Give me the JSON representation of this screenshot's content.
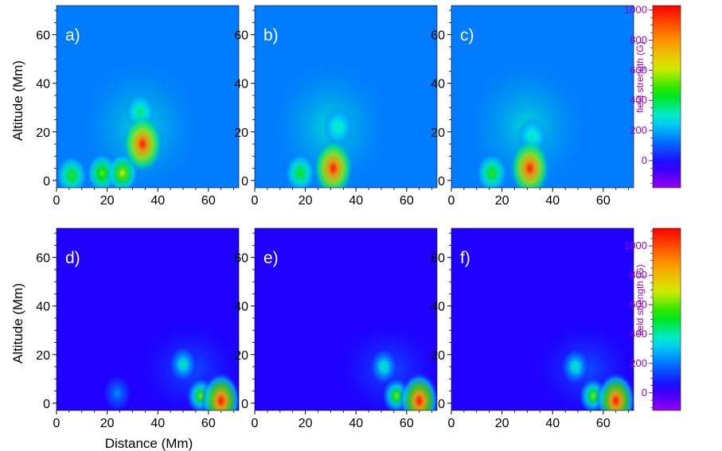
{
  "chart_data": [
    {
      "type": "heatmap",
      "label": "a)",
      "xlim": [
        0,
        72
      ],
      "ylim": [
        -3,
        72
      ],
      "x_ticks": [
        0,
        20,
        40,
        60
      ],
      "y_ticks": [
        0,
        20,
        40,
        60
      ],
      "ylabel": "Altitude (Mm)",
      "xlabel": "",
      "blobs": [
        {
          "x": 34,
          "y": 15,
          "value": 1000
        },
        {
          "x": 26,
          "y": 3,
          "value": 620
        },
        {
          "x": 18,
          "y": 3,
          "value": 540
        },
        {
          "x": 6,
          "y": 2,
          "value": 480
        },
        {
          "x": 33,
          "y": 28,
          "value": 380
        }
      ]
    },
    {
      "type": "heatmap",
      "label": "b)",
      "xlim": [
        0,
        72
      ],
      "ylim": [
        -3,
        72
      ],
      "x_ticks": [
        0,
        20,
        40,
        60
      ],
      "y_ticks": [
        0,
        20,
        40,
        60
      ],
      "ylabel": "",
      "xlabel": "",
      "blobs": [
        {
          "x": 31,
          "y": 5,
          "value": 1000
        },
        {
          "x": 18,
          "y": 3,
          "value": 460
        },
        {
          "x": 33,
          "y": 22,
          "value": 330
        }
      ]
    },
    {
      "type": "heatmap",
      "label": "c)",
      "xlim": [
        0,
        72
      ],
      "ylim": [
        -3,
        72
      ],
      "x_ticks": [
        0,
        20,
        40,
        60
      ],
      "y_ticks": [
        0,
        20,
        40,
        60
      ],
      "ylabel": "",
      "xlabel": "",
      "blobs": [
        {
          "x": 31,
          "y": 5,
          "value": 1000
        },
        {
          "x": 16,
          "y": 3,
          "value": 480
        },
        {
          "x": 32,
          "y": 18,
          "value": 330
        }
      ]
    },
    {
      "type": "heatmap",
      "label": "d)",
      "xlim": [
        0,
        72
      ],
      "ylim": [
        -3,
        72
      ],
      "x_ticks": [
        0,
        20,
        40,
        60
      ],
      "y_ticks": [
        0,
        20,
        40,
        60
      ],
      "ylabel": "Altitude (Mm)",
      "xlabel": "Distance (Mm)",
      "blobs": [
        {
          "x": 65,
          "y": 1,
          "value": 1100
        },
        {
          "x": 57,
          "y": 3,
          "value": 620
        },
        {
          "x": 50,
          "y": 16,
          "value": 420
        },
        {
          "x": 24,
          "y": 4,
          "value": 230
        }
      ]
    },
    {
      "type": "heatmap",
      "label": "e)",
      "xlim": [
        0,
        72
      ],
      "ylim": [
        -3,
        72
      ],
      "x_ticks": [
        0,
        20,
        40,
        60
      ],
      "y_ticks": [
        0,
        20,
        40,
        60
      ],
      "ylabel": "",
      "xlabel": "",
      "blobs": [
        {
          "x": 65,
          "y": 1,
          "value": 1100
        },
        {
          "x": 56,
          "y": 3,
          "value": 620
        },
        {
          "x": 51,
          "y": 15,
          "value": 420
        }
      ]
    },
    {
      "type": "heatmap",
      "label": "f)",
      "xlim": [
        0,
        72
      ],
      "ylim": [
        -3,
        72
      ],
      "x_ticks": [
        0,
        20,
        40,
        60
      ],
      "y_ticks": [
        0,
        20,
        40,
        60
      ],
      "ylabel": "",
      "xlabel": "",
      "blobs": [
        {
          "x": 65,
          "y": 1,
          "value": 1100
        },
        {
          "x": 56,
          "y": 3,
          "value": 620
        },
        {
          "x": 49,
          "y": 15,
          "value": 420
        }
      ]
    }
  ],
  "colorbars": [
    {
      "title": "field strength (G)",
      "vmin": -180,
      "vmax": 1030,
      "ticks": [
        0,
        200,
        400,
        600,
        800,
        1000
      ]
    },
    {
      "title": "field strength (G)",
      "vmin": -120,
      "vmax": 1120,
      "ticks": [
        0,
        200,
        400,
        600,
        800,
        1000
      ]
    }
  ]
}
